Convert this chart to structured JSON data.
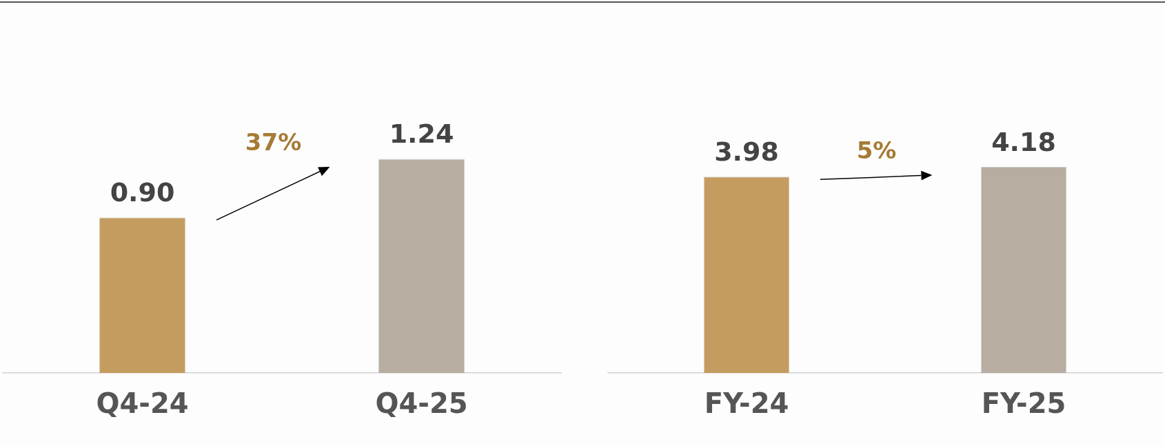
{
  "chart_data": [
    {
      "type": "bar",
      "categories": [
        "Q4-24",
        "Q4-25"
      ],
      "values": [
        0.9,
        1.24
      ],
      "value_labels": [
        "0.90",
        "1.24"
      ],
      "colors": [
        "#c49c5f",
        "#b7ada1"
      ],
      "grid": false,
      "legend": false,
      "tick_labels": "x",
      "annotations": [
        "37%"
      ]
    },
    {
      "type": "bar",
      "categories": [
        "FY-24",
        "FY-25"
      ],
      "values": [
        3.98,
        4.18
      ],
      "value_labels": [
        "3.98",
        "4.18"
      ],
      "colors": [
        "#c49c5f",
        "#b7ada1"
      ],
      "grid": false,
      "legend": false,
      "tick_labels": "x",
      "annotations": [
        "5%"
      ]
    }
  ]
}
